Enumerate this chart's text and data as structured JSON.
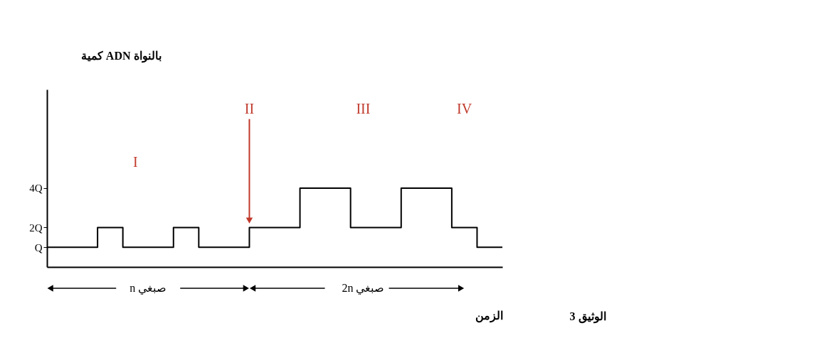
{
  "chart_data": {
    "type": "step",
    "ylabel": "كمية ADN بالنواة",
    "xlabel": "الزمن",
    "categories": [
      null,
      null,
      null,
      null,
      null,
      null,
      null,
      null,
      null,
      null,
      null,
      null,
      null,
      null,
      null,
      null,
      null,
      null,
      null
    ],
    "series": [
      {
        "color": "#000000",
        "values": [
          1,
          1,
          2,
          1,
          1,
          2,
          1,
          1,
          2,
          2,
          4,
          4,
          2,
          2,
          4,
          4,
          2,
          1,
          1
        ]
      }
    ],
    "ylim": [
      0,
      9
    ],
    "yticks": [
      {
        "value": 1,
        "label": "Q"
      },
      {
        "value": 2,
        "label": "2Q"
      },
      {
        "value": 4,
        "label": "4Q"
      }
    ],
    "tick_labels": "y",
    "grid": false,
    "annotations": [
      "I",
      "II",
      "III",
      "IV",
      "n صبغي",
      "2n صبغي",
      "الوثيق 3"
    ]
  }
}
